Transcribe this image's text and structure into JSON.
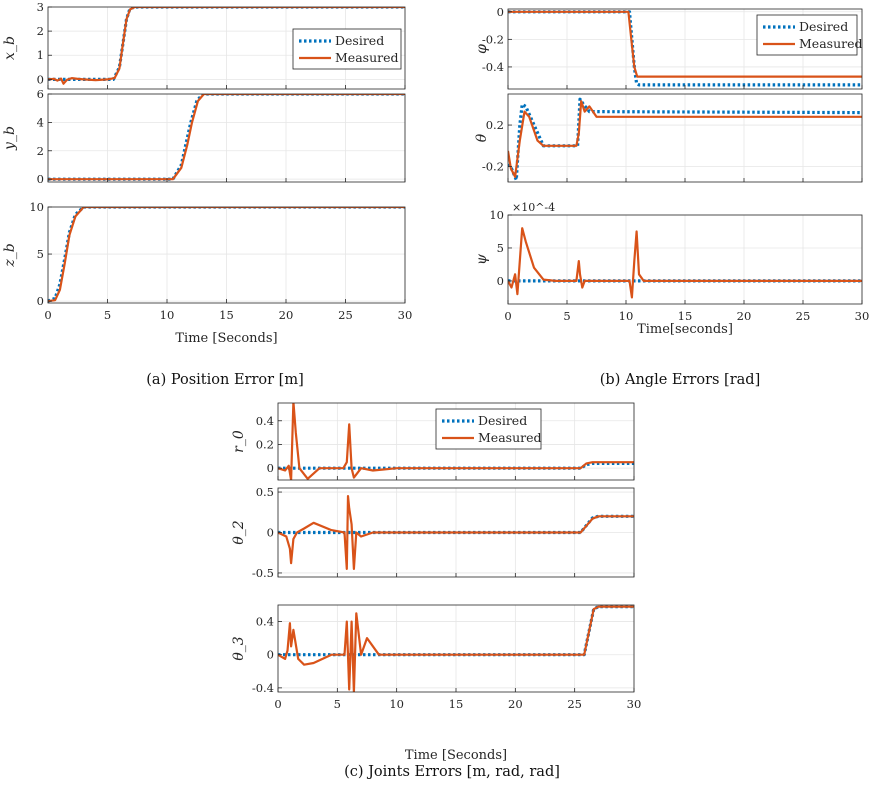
{
  "colors": {
    "desired": "#0072BD",
    "measured": "#D95319"
  },
  "legend": {
    "desired": "Desired",
    "measured": "Measured"
  },
  "captions": {
    "a": "(a) Position Error [m]",
    "b": "(b) Angle Errors [rad]",
    "c": "(c) Joints Errors [m, rad, rad]"
  },
  "chart_data": [
    {
      "type": "line",
      "panel": "a",
      "title": "",
      "xlabel": "Time [Seconds]",
      "x_ticks": [
        "0",
        "5",
        "10",
        "15",
        "20",
        "25",
        "30"
      ],
      "xlim": [
        0,
        30
      ],
      "grid": true,
      "legend_position": "top-right of x_b subplot",
      "subplots": [
        {
          "ylabel": "x_b",
          "ylim": [
            -0.4,
            3
          ],
          "y_ticks": [
            "0",
            "1",
            "2",
            "3"
          ],
          "y_tick_values": [
            0,
            1,
            2,
            3
          ],
          "series": [
            {
              "name": "Desired",
              "style": "dotted",
              "x": [
                0,
                5.5,
                6.0,
                6.3,
                6.6,
                6.9,
                7.5,
                30
              ],
              "y": [
                0,
                0,
                0.5,
                1.5,
                2.5,
                2.95,
                3,
                3
              ]
            },
            {
              "name": "Measured",
              "x": [
                0,
                0.5,
                0.8,
                1.1,
                1.3,
                1.6,
                2.0,
                2.5,
                3,
                4,
                5,
                5.6,
                6.0,
                6.3,
                6.6,
                6.9,
                7.3,
                8,
                30
              ],
              "y": [
                0,
                0.02,
                -0.05,
                0.03,
                -0.18,
                -0.02,
                0.05,
                0.02,
                0.0,
                -0.03,
                0,
                0.05,
                0.45,
                1.5,
                2.5,
                2.9,
                3.0,
                3.0,
                3.0
              ]
            }
          ]
        },
        {
          "ylabel": "y_b",
          "ylim": [
            -0.2,
            6
          ],
          "y_ticks": [
            "0",
            "2",
            "4",
            "6"
          ],
          "y_tick_values": [
            0,
            2,
            4,
            6
          ],
          "series": [
            {
              "name": "Desired",
              "style": "dotted",
              "x": [
                0,
                10.5,
                11.2,
                11.6,
                12.0,
                12.5,
                13.0,
                30
              ],
              "y": [
                0,
                0,
                1,
                2.5,
                4,
                5.5,
                6,
                6
              ]
            },
            {
              "name": "Measured",
              "x": [
                0,
                10.5,
                11.2,
                11.7,
                12.1,
                12.6,
                13.1,
                30
              ],
              "y": [
                0,
                0,
                0.8,
                2.4,
                4,
                5.5,
                6,
                6
              ]
            }
          ]
        },
        {
          "ylabel": "z_b",
          "ylim": [
            -0.2,
            10
          ],
          "y_ticks": [
            "0",
            "5",
            "10"
          ],
          "y_tick_values": [
            0,
            5,
            10
          ],
          "series": [
            {
              "name": "Desired",
              "style": "dotted",
              "x": [
                0,
                0.6,
                1.0,
                1.4,
                1.8,
                2.3,
                3.0,
                30
              ],
              "y": [
                0,
                0.3,
                1.8,
                4.5,
                7.3,
                9.2,
                10,
                10
              ]
            },
            {
              "name": "Measured",
              "x": [
                0,
                0.6,
                1.0,
                1.4,
                1.8,
                2.3,
                3.0,
                30
              ],
              "y": [
                0,
                0.1,
                1.2,
                4,
                7,
                9,
                10,
                10
              ]
            }
          ]
        }
      ]
    },
    {
      "type": "line",
      "panel": "b",
      "title": "",
      "xlabel": "Time[seconds]",
      "x_ticks": [
        "0",
        "5",
        "10",
        "15",
        "20",
        "25",
        "30"
      ],
      "xlim": [
        0,
        30
      ],
      "grid": true,
      "legend_position": "top-right of phi subplot",
      "subplots": [
        {
          "ylabel": "φ",
          "ylim": [
            -0.56,
            0.02
          ],
          "y_ticks": [
            "0",
            "-0.2",
            "-0.4"
          ],
          "y_tick_values": [
            0,
            -0.2,
            -0.4
          ],
          "series": [
            {
              "name": "Desired",
              "style": "dotted",
              "x": [
                0,
                10.3,
                10.5,
                10.7,
                10.9,
                11.1,
                30
              ],
              "y": [
                0,
                0,
                -0.2,
                -0.4,
                -0.52,
                -0.53,
                -0.53
              ]
            },
            {
              "name": "Measured",
              "x": [
                0,
                10.2,
                10.45,
                10.7,
                10.95,
                11.2,
                30
              ],
              "y": [
                0,
                0,
                -0.2,
                -0.4,
                -0.47,
                -0.47,
                -0.47
              ]
            }
          ]
        },
        {
          "ylabel": "θ",
          "ylim": [
            -0.35,
            0.5
          ],
          "y_ticks": [
            "0.2",
            "-0.2"
          ],
          "y_tick_values": [
            0.2,
            -0.2
          ],
          "series": [
            {
              "name": "Desired",
              "style": "dotted",
              "x": [
                0,
                0.3,
                0.7,
                1.0,
                1.2,
                1.5,
                3.0,
                5.9,
                6.1,
                6.4,
                6.9,
                30
              ],
              "y": [
                -0.18,
                -0.22,
                -0.33,
                0.2,
                0.4,
                0.38,
                0.0,
                0.0,
                0.45,
                0.4,
                0.33,
                0.32
              ]
            },
            {
              "name": "Measured",
              "x": [
                0,
                0.25,
                0.6,
                1.0,
                1.4,
                1.8,
                2.5,
                3.0,
                5.8,
                6.0,
                6.2,
                6.5,
                6.9,
                7.5,
                30
              ],
              "y": [
                -0.05,
                -0.22,
                -0.3,
                0.05,
                0.33,
                0.28,
                0.05,
                0.0,
                0.0,
                0.12,
                0.43,
                0.33,
                0.38,
                0.28,
                0.28
              ]
            }
          ]
        },
        {
          "ylabel": "ψ",
          "ylim": [
            -0.00035,
            0.001
          ],
          "exponent": "×10^-4",
          "y_ticks": [
            "10",
            "5",
            "0"
          ],
          "y_tick_values": [
            0.001,
            0.0005,
            0
          ],
          "series": [
            {
              "name": "Desired",
              "style": "dotted",
              "x": [
                0,
                30
              ],
              "y": [
                0,
                0
              ]
            },
            {
              "name": "Measured",
              "x": [
                0,
                0.3,
                0.6,
                0.8,
                1.2,
                1.5,
                2.2,
                3.0,
                4.0,
                5.8,
                6.0,
                6.1,
                6.3,
                6.5,
                10.3,
                10.5,
                10.7,
                10.9,
                11.1,
                11.5,
                30
              ],
              "y": [
                0,
                -0.0001,
                0.0001,
                -0.0002,
                0.0008,
                0.0006,
                0.0002,
                2e-05,
                0,
                0,
                0.0003,
                0.0001,
                -0.0001,
                0,
                0,
                -0.00025,
                0.0003,
                0.00075,
                0.0001,
                0,
                0
              ]
            }
          ]
        }
      ]
    },
    {
      "type": "line",
      "panel": "c",
      "title": "",
      "xlabel": "Time [Seconds]",
      "x_ticks": [
        "0",
        "5",
        "10",
        "15",
        "20",
        "25",
        "30"
      ],
      "xlim": [
        0,
        30
      ],
      "grid": true,
      "legend_position": "top of r0 subplot",
      "subplots": [
        {
          "ylabel": "r_0",
          "ylim": [
            -0.1,
            0.55
          ],
          "y_ticks": [
            "0",
            "0.2",
            "0.4"
          ],
          "y_tick_values": [
            0,
            0.2,
            0.4
          ],
          "series": [
            {
              "name": "Desired",
              "style": "dotted",
              "x": [
                0,
                25.5,
                26,
                26.5,
                30
              ],
              "y": [
                0,
                0,
                0.03,
                0.04,
                0.04
              ]
            },
            {
              "name": "Measured",
              "x": [
                0,
                0.6,
                0.9,
                1.1,
                1.3,
                1.5,
                1.8,
                2.5,
                3.5,
                5.5,
                5.8,
                6.0,
                6.2,
                6.4,
                7,
                8,
                10,
                25.5,
                26,
                26.5,
                30
              ],
              "y": [
                0,
                -0.02,
                0.02,
                -0.1,
                0.56,
                0.3,
                0.0,
                -0.09,
                0,
                0,
                0.05,
                0.37,
                0.0,
                -0.08,
                0,
                -0.02,
                0,
                0,
                0.04,
                0.05,
                0.05
              ]
            }
          ]
        },
        {
          "ylabel": "θ_2",
          "ylim": [
            -0.55,
            0.55
          ],
          "y_ticks": [
            "0.5",
            "0",
            "-0.5"
          ],
          "y_tick_values": [
            0.5,
            0,
            -0.5
          ],
          "series": [
            {
              "name": "Desired",
              "style": "dotted",
              "x": [
                0,
                25.5,
                26.5,
                27,
                30
              ],
              "y": [
                0,
                0,
                0.18,
                0.2,
                0.2
              ]
            },
            {
              "name": "Measured",
              "x": [
                0,
                0.7,
                1.0,
                1.1,
                1.3,
                1.6,
                2.2,
                3.0,
                4.5,
                5.6,
                5.8,
                5.9,
                6.0,
                6.2,
                6.4,
                6.6,
                7.0,
                8.0,
                25.5,
                26.5,
                27,
                30
              ],
              "y": [
                0,
                -0.05,
                -0.2,
                -0.38,
                -0.08,
                0.0,
                0.05,
                0.12,
                0.03,
                0.0,
                -0.45,
                0.45,
                0.3,
                0.1,
                -0.45,
                0.0,
                -0.05,
                0,
                0,
                0.17,
                0.2,
                0.2
              ]
            }
          ]
        },
        {
          "ylabel": "θ_3",
          "ylim": [
            -0.45,
            0.6
          ],
          "y_ticks": [
            "0.4",
            "0",
            "-0.4"
          ],
          "y_tick_values": [
            0.4,
            0,
            -0.4
          ],
          "series": [
            {
              "name": "Desired",
              "style": "dotted",
              "x": [
                0,
                25.8,
                26.6,
                27,
                30
              ],
              "y": [
                0,
                0,
                0.55,
                0.58,
                0.58
              ]
            },
            {
              "name": "Measured",
              "x": [
                0,
                0.6,
                0.8,
                1.0,
                1.1,
                1.3,
                1.7,
                2.2,
                3.0,
                4.5,
                5.6,
                5.8,
                6.0,
                6.2,
                6.4,
                6.6,
                7.0,
                7.5,
                8.5,
                25.8,
                26.6,
                27,
                30
              ],
              "y": [
                0,
                -0.05,
                0.05,
                0.38,
                0.1,
                0.3,
                -0.05,
                -0.12,
                -0.1,
                0,
                0,
                0.4,
                -0.42,
                0.4,
                -0.45,
                0.5,
                0.0,
                0.2,
                0,
                0,
                0.55,
                0.58,
                0.58
              ]
            }
          ]
        }
      ]
    }
  ]
}
